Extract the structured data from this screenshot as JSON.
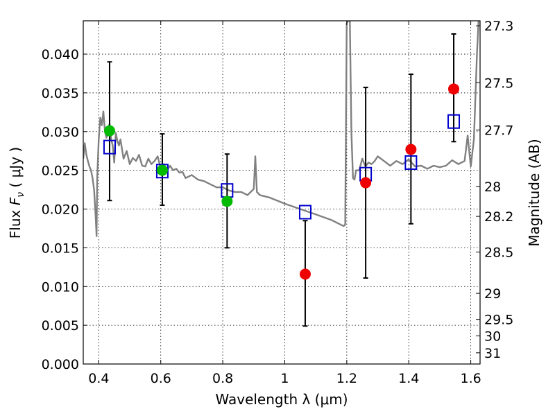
{
  "chart_data": {
    "type": "scatter",
    "xlabel": "Wavelength  λ (μm)",
    "ylabel": "Flux  F_ν  ( μJy )",
    "y2label": "Magnitude (AB)",
    "xlim": [
      0.35,
      1.63
    ],
    "ylim": [
      0.0,
      0.0443
    ],
    "grid": true,
    "x_ticks": [
      0.4,
      0.6,
      0.8,
      1.0,
      1.2,
      1.4,
      1.6
    ],
    "x_tick_labels": [
      "0.4",
      "0.6",
      "0.8",
      "1",
      "1.2",
      "1.4",
      "1.6"
    ],
    "y_ticks": [
      0.0,
      0.005,
      0.01,
      0.015,
      0.02,
      0.025,
      0.03,
      0.035,
      0.04
    ],
    "y_tick_labels": [
      "0.000",
      "0.005",
      "0.010",
      "0.015",
      "0.020",
      "0.025",
      "0.030",
      "0.035",
      "0.040"
    ],
    "y2_ticks": [
      27.3,
      27.5,
      27.7,
      28,
      28.2,
      28.5,
      29,
      29.5,
      30,
      31
    ],
    "y2_tick_labels": [
      "27.3",
      "27.5",
      "27.7",
      "28",
      "28.2",
      "28.5",
      "29",
      "29.5",
      "30",
      "31"
    ],
    "series": [
      {
        "marker": "circle",
        "colors": [
          "#00bb00",
          "#00bb00",
          "#00bb00",
          "#ee0000",
          "#ee0000",
          "#ee0000",
          "#ee0000"
        ],
        "x": [
          0.435,
          0.605,
          0.814,
          1.066,
          1.261,
          1.407,
          1.545
        ],
        "y": [
          0.0301,
          0.025,
          0.021,
          0.0116,
          0.0234,
          0.0277,
          0.0355
        ],
        "err_low": [
          0.0211,
          0.0205,
          0.015,
          0.0049,
          0.0111,
          0.0181,
          0.0287
        ],
        "err_high": [
          0.039,
          0.0297,
          0.0271,
          0.0185,
          0.0357,
          0.0374,
          0.0426
        ]
      },
      {
        "marker": "open-square",
        "color": "#0000cc",
        "x": [
          0.435,
          0.605,
          0.814,
          1.066,
          1.261,
          1.407,
          1.545
        ],
        "y": [
          0.028,
          0.0249,
          0.0224,
          0.0196,
          0.0245,
          0.026,
          0.0313
        ]
      },
      {
        "type": "line",
        "color": "#808080",
        "x": [
          0.35,
          0.355,
          0.36,
          0.365,
          0.37,
          0.375,
          0.38,
          0.385,
          0.39,
          0.393,
          0.395,
          0.4,
          0.405,
          0.41,
          0.415,
          0.42,
          0.425,
          0.43,
          0.435,
          0.44,
          0.445,
          0.45,
          0.455,
          0.46,
          0.465,
          0.47,
          0.48,
          0.49,
          0.5,
          0.51,
          0.52,
          0.53,
          0.54,
          0.55,
          0.56,
          0.57,
          0.58,
          0.59,
          0.6,
          0.61,
          0.62,
          0.63,
          0.64,
          0.65,
          0.66,
          0.67,
          0.68,
          0.7,
          0.72,
          0.74,
          0.76,
          0.78,
          0.8,
          0.82,
          0.84,
          0.86,
          0.88,
          0.9,
          0.905,
          0.91,
          0.92,
          0.95,
          1.0,
          1.05,
          1.1,
          1.15,
          1.18,
          1.19,
          1.195,
          1.2,
          1.205,
          1.21,
          1.215,
          1.22,
          1.225,
          1.23,
          1.24,
          1.25,
          1.26,
          1.27,
          1.28,
          1.29,
          1.3,
          1.32,
          1.34,
          1.36,
          1.38,
          1.4,
          1.42,
          1.44,
          1.46,
          1.48,
          1.5,
          1.52,
          1.54,
          1.56,
          1.58,
          1.59,
          1.6,
          1.61,
          1.62,
          1.625
        ],
        "y": [
          0.0265,
          0.0285,
          0.027,
          0.0262,
          0.0255,
          0.025,
          0.024,
          0.0225,
          0.019,
          0.0165,
          0.024,
          0.029,
          0.0318,
          0.0308,
          0.0326,
          0.03,
          0.0292,
          0.0305,
          0.031,
          0.029,
          0.0282,
          0.026,
          0.0298,
          0.0288,
          0.0282,
          0.029,
          0.0265,
          0.0275,
          0.0258,
          0.0266,
          0.0262,
          0.027,
          0.0256,
          0.0255,
          0.0265,
          0.0258,
          0.0262,
          0.0268,
          0.0252,
          0.0258,
          0.025,
          0.0256,
          0.025,
          0.0252,
          0.0247,
          0.0248,
          0.024,
          0.0244,
          0.0238,
          0.0236,
          0.0232,
          0.0228,
          0.0228,
          0.0224,
          0.0222,
          0.0222,
          0.0218,
          0.0226,
          0.0268,
          0.0222,
          0.0218,
          0.0215,
          0.0207,
          0.02,
          0.0193,
          0.0186,
          0.018,
          0.0178,
          0.018,
          0.044,
          0.0443,
          0.0443,
          0.03,
          0.024,
          0.0238,
          0.025,
          0.025,
          0.0265,
          0.0255,
          0.026,
          0.0258,
          0.0262,
          0.0268,
          0.0262,
          0.0256,
          0.0262,
          0.0258,
          0.0264,
          0.0255,
          0.0256,
          0.0252,
          0.0256,
          0.0254,
          0.0256,
          0.0263,
          0.0258,
          0.0262,
          0.0295,
          0.0255,
          0.029,
          0.04,
          0.0443
        ]
      }
    ]
  }
}
